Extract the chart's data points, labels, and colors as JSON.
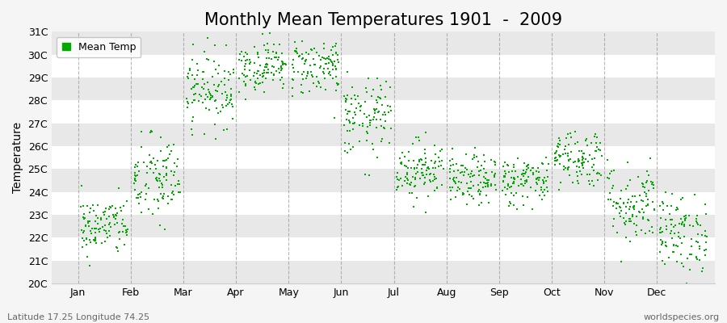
{
  "title": "Monthly Mean Temperatures 1901  -  2009",
  "ylabel": "Temperature",
  "ylim": [
    20,
    31
  ],
  "yticks": [
    20,
    21,
    22,
    23,
    24,
    25,
    26,
    27,
    28,
    29,
    30,
    31
  ],
  "ytick_labels": [
    "20C",
    "21C",
    "22C",
    "23C",
    "24C",
    "25C",
    "26C",
    "27C",
    "28C",
    "29C",
    "30C",
    "31C"
  ],
  "months": [
    "Jan",
    "Feb",
    "Mar",
    "Apr",
    "May",
    "Jun",
    "Jul",
    "Aug",
    "Sep",
    "Oct",
    "Nov",
    "Dec"
  ],
  "month_means": [
    22.5,
    24.5,
    28.5,
    29.5,
    29.5,
    27.2,
    25.0,
    24.5,
    24.5,
    25.5,
    23.5,
    22.2
  ],
  "month_stds": [
    0.65,
    1.0,
    0.8,
    0.55,
    0.65,
    0.85,
    0.65,
    0.55,
    0.55,
    0.65,
    0.9,
    0.85
  ],
  "n_years": 109,
  "seed": 42,
  "marker_color": "#00aa00",
  "marker_size": 4,
  "legend_label": "Mean Temp",
  "plot_bg_color": "#f5f5f5",
  "band_light": "#ffffff",
  "band_dark": "#e8e8e8",
  "dashed_line_color": "#999999",
  "footer_left": "Latitude 17.25 Longitude 74.25",
  "footer_right": "worldspecies.org",
  "title_fontsize": 15,
  "axis_label_fontsize": 10,
  "tick_fontsize": 9,
  "footer_fontsize": 8
}
